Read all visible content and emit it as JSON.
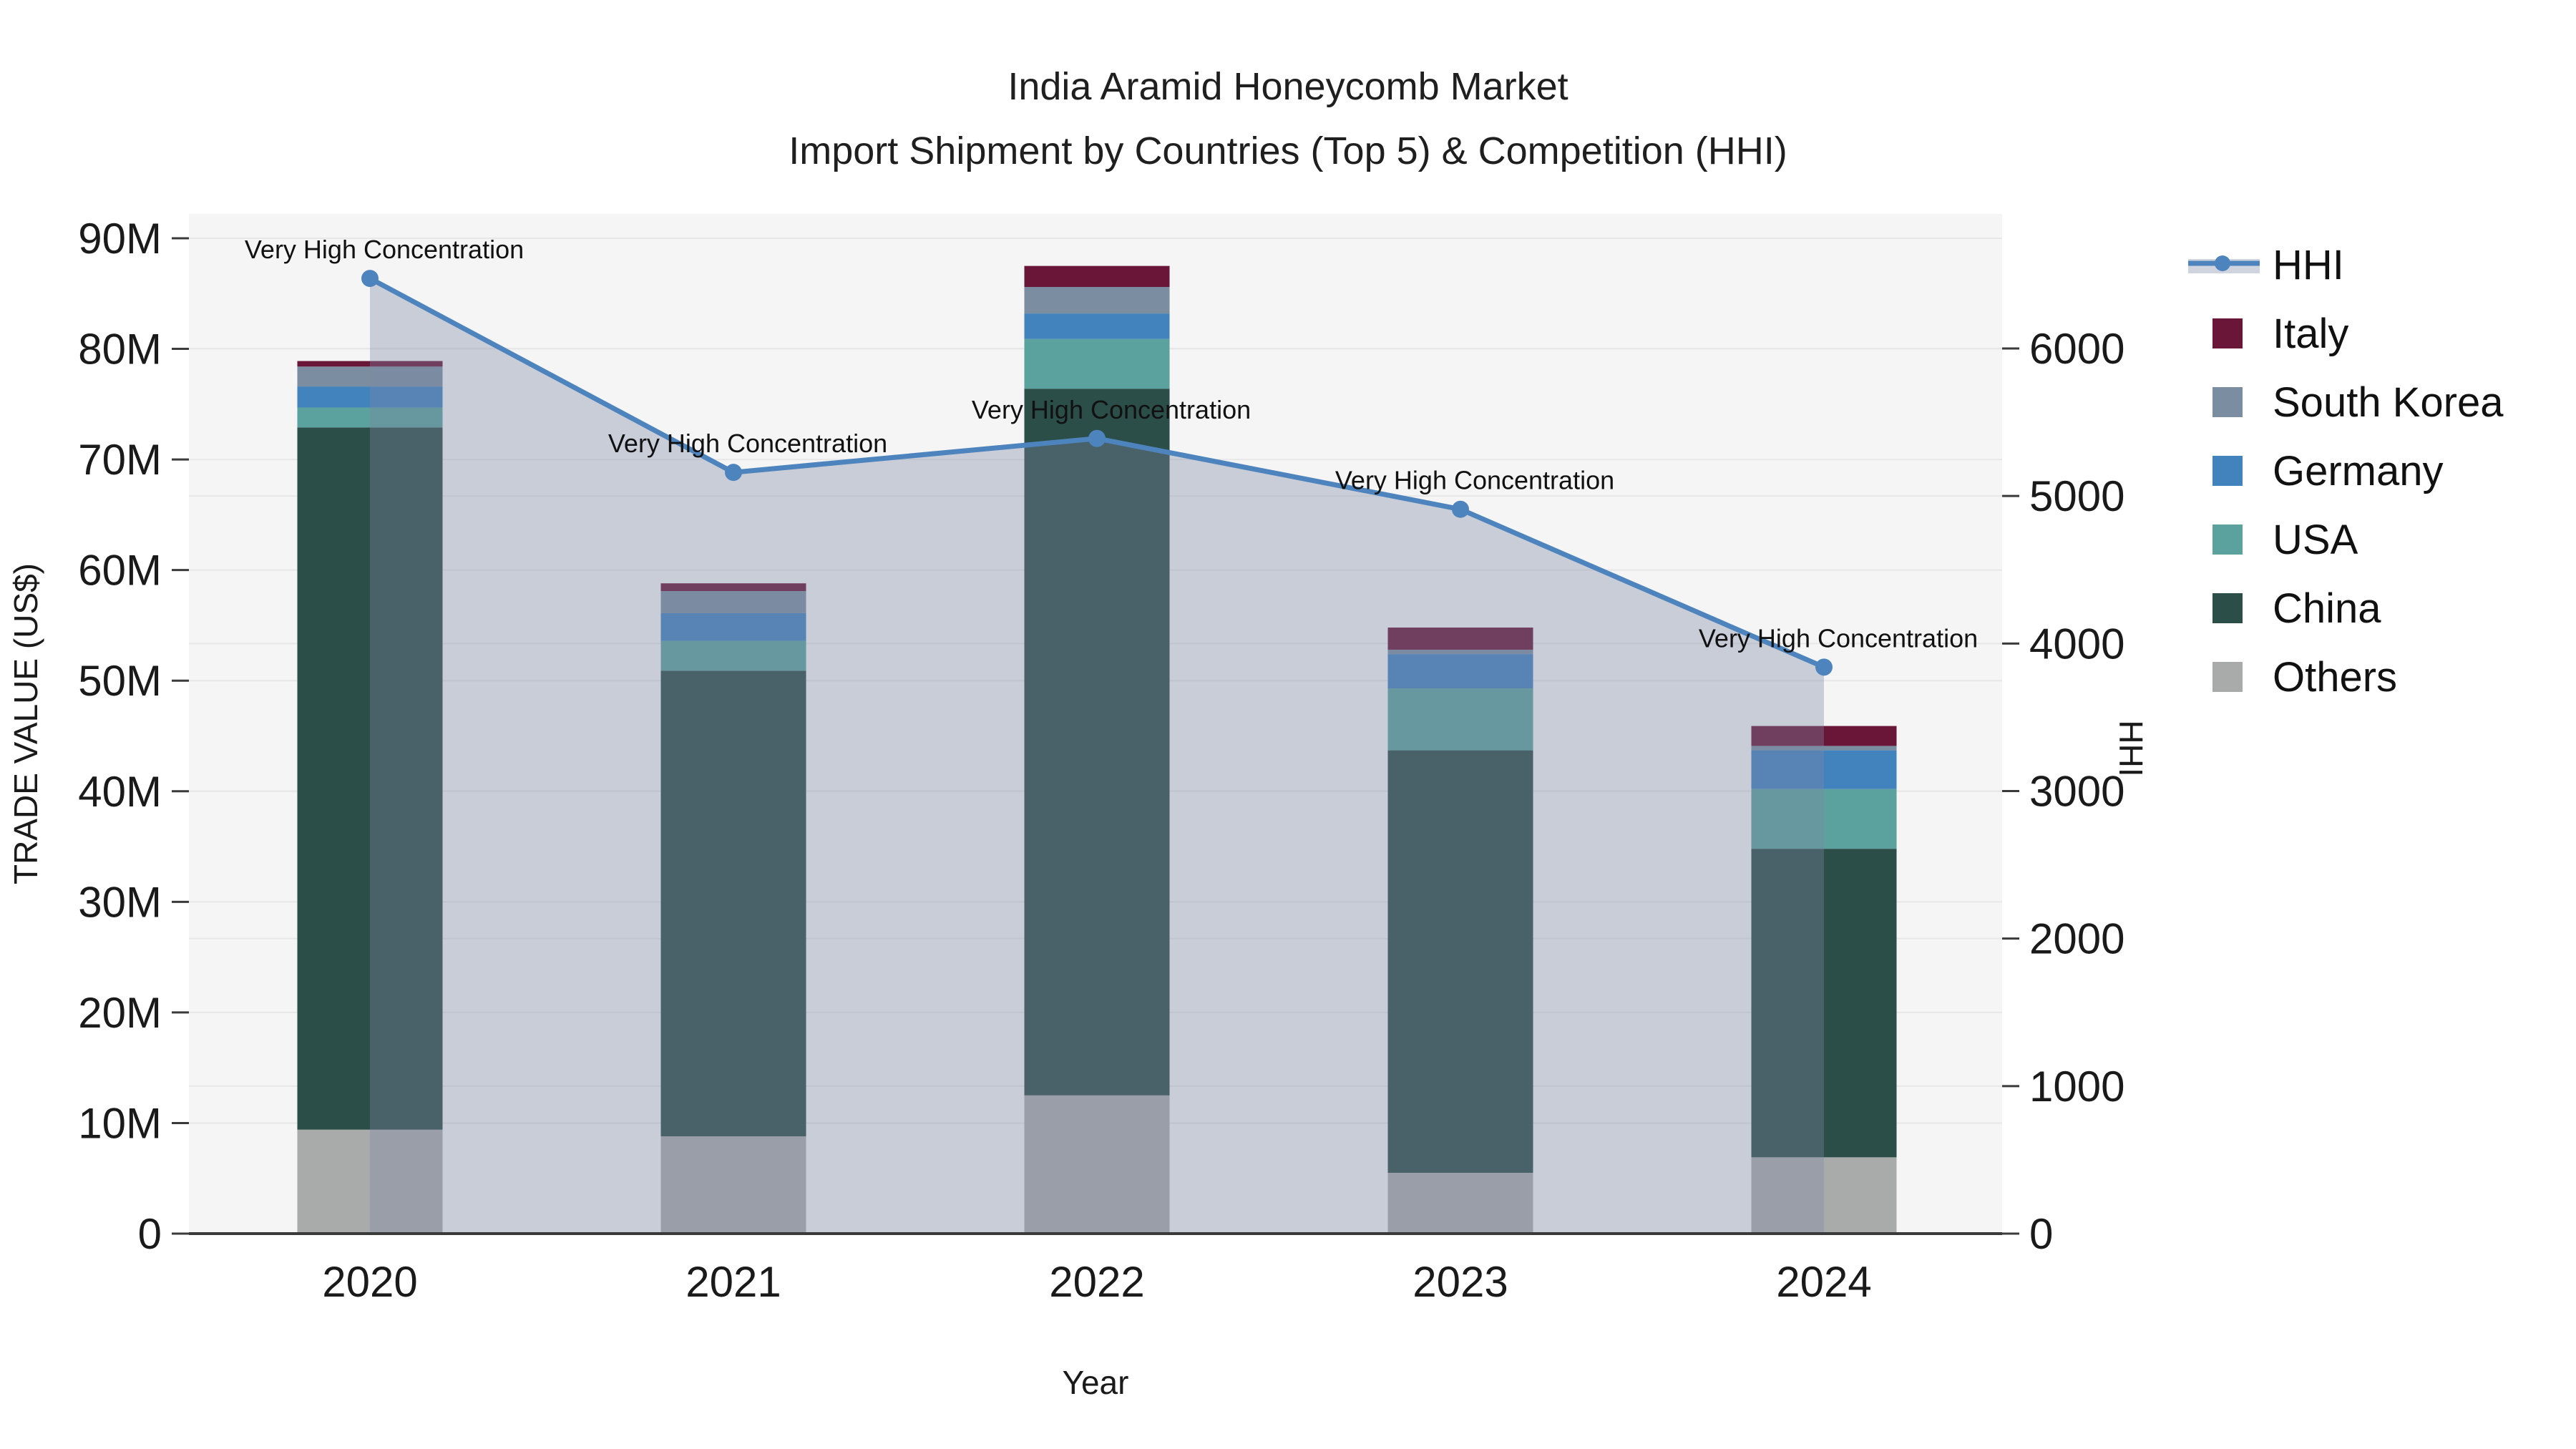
{
  "title": {
    "line1": "India Aramid Honeycomb Market",
    "line2": "Import Shipment by Countries (Top 5) & Competition (HHI)"
  },
  "axes": {
    "y_left_label": "TRADE VALUE (US$)",
    "y_right_label": "HHI",
    "x_label": "Year",
    "y_left_tick_labels": [
      "0",
      "10M",
      "20M",
      "30M",
      "40M",
      "50M",
      "60M",
      "70M",
      "80M",
      "90M"
    ],
    "y_right_tick_labels": [
      "0",
      "1000",
      "2000",
      "3000",
      "4000",
      "5000",
      "6000"
    ]
  },
  "colors": {
    "hhi_line": "#4e84bd",
    "hhi_area": "#7c89a5",
    "hhi_area_opacity": 0.36,
    "plot_background": "#f5f5f5",
    "gridline": "#e7e7e7",
    "axis_line": "#3a3a3a",
    "tick_text": "#1a1a1a",
    "annotation_text": "#111111"
  },
  "legend": {
    "items": [
      {
        "label": "HHI",
        "type": "line"
      },
      {
        "label": "Italy",
        "type": "square",
        "color": "#6a1638"
      },
      {
        "label": "South Korea",
        "type": "square",
        "color": "#7b8da0"
      },
      {
        "label": "Germany",
        "type": "square",
        "color": "#4283bd"
      },
      {
        "label": "USA",
        "type": "square",
        "color": "#5ba19d"
      },
      {
        "label": "China",
        "type": "square",
        "color": "#2c4e48"
      },
      {
        "label": "Others",
        "type": "square",
        "color": "#a9abaa"
      }
    ]
  },
  "chart_data": {
    "type": "bar+line",
    "title": "India Aramid Honeycomb Market — Import Shipment by Countries (Top 5) & Competition (HHI)",
    "categories": [
      "2020",
      "2021",
      "2022",
      "2023",
      "2024"
    ],
    "bar_value_unit": "Million US$",
    "stack_order_bottom_to_top": [
      "Others",
      "China",
      "USA",
      "Germany",
      "South Korea",
      "Italy"
    ],
    "series": [
      {
        "name": "Others",
        "color": "#a9abaa",
        "values": [
          9.4,
          8.8,
          12.5,
          5.5,
          6.9
        ]
      },
      {
        "name": "China",
        "color": "#2c4e48",
        "values": [
          63.5,
          42.1,
          63.9,
          38.2,
          27.9
        ]
      },
      {
        "name": "USA",
        "color": "#5ba19d",
        "values": [
          1.8,
          2.7,
          4.5,
          5.6,
          5.4
        ]
      },
      {
        "name": "Germany",
        "color": "#4283bd",
        "values": [
          1.9,
          2.5,
          2.3,
          3.1,
          3.5
        ]
      },
      {
        "name": "South Korea",
        "color": "#7b8da0",
        "values": [
          1.8,
          2.0,
          2.4,
          0.4,
          0.4
        ]
      },
      {
        "name": "Italy",
        "color": "#6a1638",
        "values": [
          0.5,
          0.7,
          1.9,
          2.0,
          1.8
        ]
      }
    ],
    "bar_totals": [
      78.9,
      58.8,
      87.5,
      54.8,
      45.9
    ],
    "line_series": {
      "name": "HHI",
      "values": [
        6475,
        5160,
        5390,
        4910,
        3840
      ]
    },
    "annotations": [
      {
        "category": "2020",
        "text": "Very High Concentration"
      },
      {
        "category": "2021",
        "text": "Very High Concentration"
      },
      {
        "category": "2022",
        "text": "Very High Concentration"
      },
      {
        "category": "2023",
        "text": "Very High Concentration"
      },
      {
        "category": "2024",
        "text": "Very High Concentration"
      }
    ],
    "xlabel": "Year",
    "ylabel_left": "TRADE VALUE (US$)",
    "ylabel_right": "HHI",
    "y_left_range_millions": [
      0,
      92.2
    ],
    "y_right_range": [
      0,
      6912
    ],
    "grid": true,
    "legend_position": "right"
  }
}
